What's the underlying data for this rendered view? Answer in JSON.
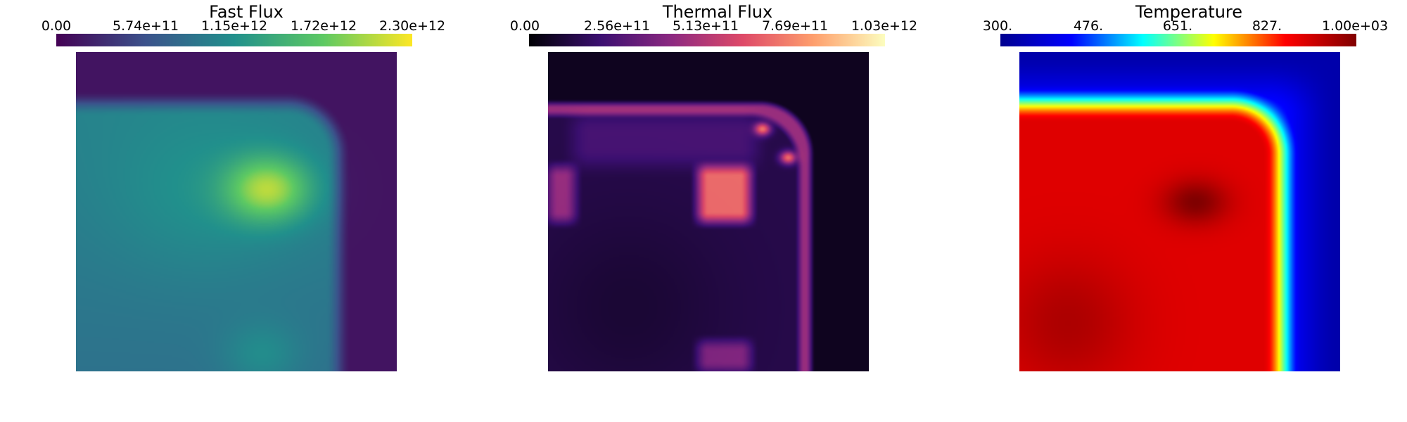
{
  "panels": [
    {
      "title": "Fast Flux",
      "ticks": [
        "0.00",
        "5.74e+11",
        "1.15e+12",
        "1.72e+12",
        "2.30e+12"
      ],
      "range": [
        0,
        2300000000000.0
      ],
      "colormap": "viridis",
      "colors": [
        "#440154",
        "#3b528b",
        "#21908c",
        "#5dc963",
        "#fde725"
      ]
    },
    {
      "title": "Thermal Flux",
      "ticks": [
        "0.00",
        "2.56e+11",
        "5.13e+11",
        "7.69e+11",
        "1.03e+12"
      ],
      "range": [
        0,
        1030000000000.0
      ],
      "colormap": "magma",
      "colors": [
        "#000004",
        "#3b0f70",
        "#8c2981",
        "#de4968",
        "#fe9f6d",
        "#fcfdbf"
      ]
    },
    {
      "title": "Temperature",
      "ticks": [
        "300.",
        "476.",
        "651.",
        "827.",
        "1.00e+03"
      ],
      "range": [
        300,
        1000
      ],
      "colormap": "jet",
      "colors": [
        "#00008f",
        "#0000ff",
        "#00ffff",
        "#ffff00",
        "#ff0000",
        "#800000"
      ]
    }
  ]
}
